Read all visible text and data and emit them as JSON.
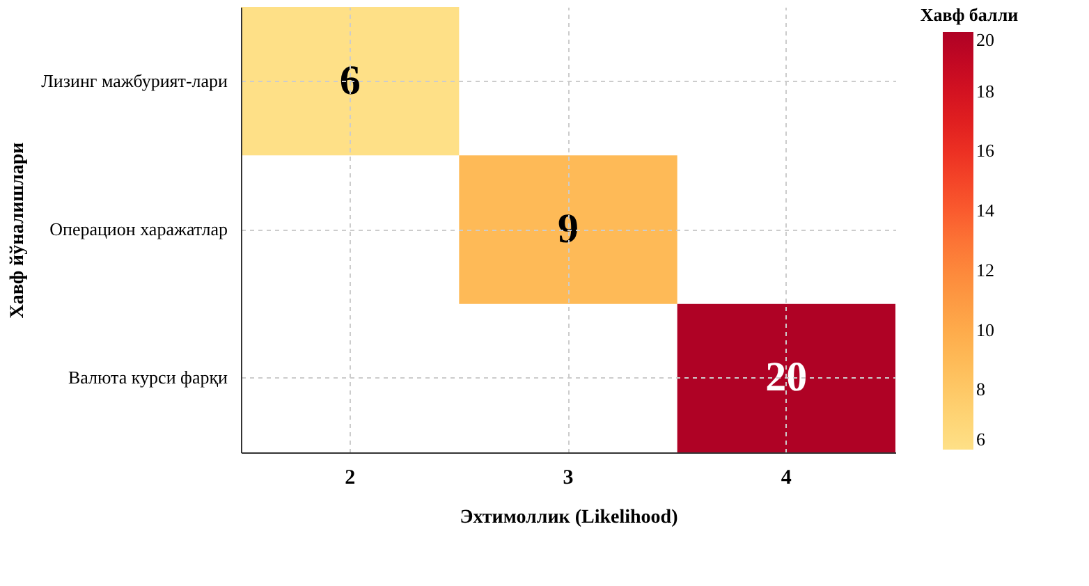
{
  "chart_data": {
    "type": "heatmap",
    "xlabel": "Эхтимоллик (Likelihood)",
    "ylabel": "Хавф йўналишлари",
    "legend_title": "Хавф балли",
    "categories": [
      "2",
      "3",
      "4"
    ],
    "y_categories": [
      "Лизинг мажбурият-лари",
      "Операцион харажатлар",
      "Валюта курси фарқи"
    ],
    "cells": [
      [
        6,
        null,
        null
      ],
      [
        null,
        9,
        null
      ],
      [
        null,
        null,
        20
      ]
    ],
    "clim": [
      6,
      20
    ],
    "cticks": [
      6,
      8,
      10,
      12,
      14,
      16,
      18,
      20
    ],
    "data_labels": true,
    "grid": true
  }
}
